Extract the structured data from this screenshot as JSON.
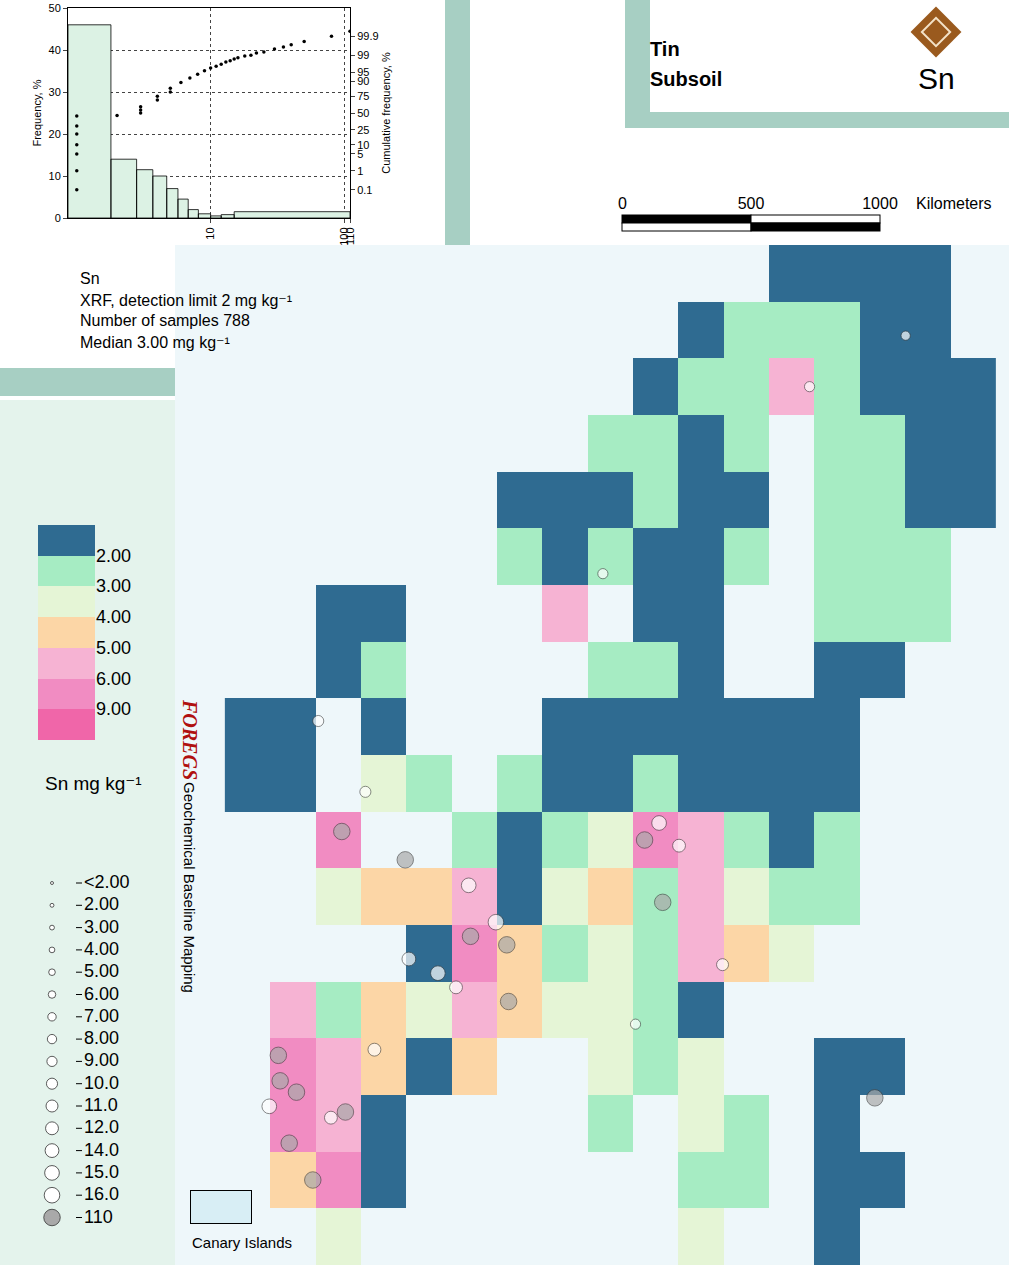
{
  "header": {
    "title": "Tin",
    "subtitle": "Subsoil",
    "symbol": "Sn"
  },
  "chart_data": [
    {
      "type": "histogram",
      "bins": [
        0.86,
        1.8,
        2.8,
        3.7,
        4.7,
        5.7,
        6.8,
        8.1,
        10,
        12,
        15,
        110
      ],
      "counts": [
        46,
        14,
        11.5,
        10,
        7,
        4.5,
        2,
        1,
        0.5,
        0.8,
        1.5
      ],
      "color": "#dcf2e4",
      "log": "x",
      "grid": true,
      "xlim": [
        0.86,
        110
      ],
      "xticks": [
        10,
        100,
        110
      ],
      "y_label": "Frequency, %",
      "ylim": [
        0,
        50
      ],
      "yticks": [
        0,
        10,
        20,
        30,
        40,
        50
      ],
      "cumulative": {
        "axis": "y2",
        "type": "scatter",
        "color": "#000000",
        "y_label": "Cumulative frequency, %",
        "x": [
          1,
          1,
          1,
          1,
          1,
          1,
          1,
          2,
          3,
          3,
          3,
          4,
          4,
          5,
          5,
          6,
          7,
          8,
          9,
          10,
          11,
          12,
          13,
          14,
          15,
          16,
          18,
          20,
          22,
          25,
          30,
          35,
          40,
          50,
          80,
          110
        ],
        "values": [
          0.1,
          1,
          5,
          10,
          20,
          30,
          45,
          46,
          50,
          55,
          60,
          70,
          75,
          80,
          84,
          89,
          92,
          94,
          95.5,
          96.5,
          97,
          97.5,
          98,
          98.2,
          98.5,
          98.7,
          98.9,
          99,
          99.2,
          99.3,
          99.5,
          99.6,
          99.7,
          99.8,
          99.9,
          99.95
        ],
        "y2lim": [
          0.0012,
          99.9988
        ],
        "y2ticks": [
          0.1,
          1,
          5,
          10,
          25,
          50,
          75,
          90,
          95,
          99,
          99.9
        ]
      },
      "annotations": [
        "Sn",
        "XRF, detection limit 2 mg kg⁻¹",
        "Number of samples 788",
        "Median 3.00 mg kg⁻¹"
      ]
    },
    {
      "type": "map",
      "tick_labels": false,
      "xlim": [
        -14,
        32
      ],
      "ylim": [
        35,
        71
      ],
      "field": {
        "x": [
          -10,
          -7.5,
          -5,
          -2.5,
          0,
          2.5,
          5,
          7.5,
          10,
          12.5,
          15,
          17.5,
          20,
          22.5,
          25,
          27.5,
          30
        ],
        "y": [
          36,
          38,
          40,
          42,
          44,
          46,
          48,
          50,
          52,
          54,
          56,
          58,
          60,
          62,
          64,
          66,
          68,
          70
        ],
        "z": [
          [
            null,
            null,
            3.5,
            null,
            null,
            null,
            null,
            null,
            null,
            null,
            3.5,
            null,
            null,
            1.5,
            null,
            null,
            null
          ],
          [
            null,
            4.5,
            7,
            1.5,
            null,
            null,
            null,
            null,
            null,
            null,
            2.5,
            2.5,
            null,
            1.5,
            1.5,
            null,
            null
          ],
          [
            null,
            7,
            5.5,
            1.5,
            null,
            null,
            null,
            null,
            2.5,
            null,
            3.5,
            2.5,
            null,
            1.5,
            null,
            null,
            null
          ],
          [
            null,
            7,
            5.5,
            4.5,
            1.5,
            4.5,
            null,
            null,
            3.5,
            2.5,
            3.5,
            null,
            null,
            1.5,
            1.5,
            null,
            null
          ],
          [
            null,
            5.5,
            2.5,
            4.5,
            3.5,
            5.5,
            4.5,
            3.5,
            3.5,
            2.5,
            1.5,
            null,
            null,
            null,
            null,
            null,
            null
          ],
          [
            null,
            null,
            null,
            null,
            1.5,
            7,
            4.5,
            2.5,
            3.5,
            2.5,
            5.5,
            4.5,
            3.5,
            null,
            null,
            null,
            null
          ],
          [
            null,
            null,
            3.5,
            4.5,
            4.5,
            5.5,
            1.5,
            3.5,
            4.5,
            2.5,
            5.5,
            3.5,
            2.5,
            2.5,
            null,
            null,
            null
          ],
          [
            null,
            null,
            7,
            null,
            null,
            2.5,
            1.5,
            2.5,
            3.5,
            7,
            5.5,
            2.5,
            1.5,
            2.5,
            null,
            null,
            null
          ],
          [
            1.5,
            1.5,
            null,
            3.5,
            2.5,
            null,
            2.5,
            1.5,
            1.5,
            2.5,
            1.5,
            1.5,
            1.5,
            1.5,
            null,
            null,
            null
          ],
          [
            1.5,
            1.5,
            null,
            1.5,
            null,
            null,
            null,
            1.5,
            1.5,
            1.5,
            1.5,
            1.5,
            1.5,
            1.5,
            null,
            null,
            null
          ],
          [
            null,
            null,
            1.5,
            2.5,
            null,
            null,
            null,
            null,
            2.5,
            2.5,
            1.5,
            null,
            null,
            1.5,
            1.5,
            null,
            null
          ],
          [
            null,
            null,
            1.5,
            1.5,
            null,
            null,
            null,
            5.5,
            null,
            1.5,
            1.5,
            null,
            null,
            2.5,
            2.5,
            2.5,
            null
          ],
          [
            null,
            null,
            null,
            null,
            null,
            null,
            2.5,
            1.5,
            2.5,
            1.5,
            1.5,
            2.5,
            null,
            2.5,
            2.5,
            2.5,
            null
          ],
          [
            null,
            null,
            null,
            null,
            null,
            null,
            1.5,
            1.5,
            1.5,
            2.5,
            1.5,
            1.5,
            null,
            2.5,
            2.5,
            1.5,
            1.5
          ],
          [
            null,
            null,
            null,
            null,
            null,
            null,
            null,
            null,
            2.5,
            2.5,
            1.5,
            2.5,
            null,
            2.5,
            2.5,
            1.5,
            1.5
          ],
          [
            null,
            null,
            null,
            null,
            null,
            null,
            null,
            null,
            null,
            1.5,
            2.5,
            2.5,
            5.5,
            2.5,
            1.5,
            1.5,
            1.5
          ],
          [
            null,
            null,
            null,
            null,
            null,
            null,
            null,
            null,
            null,
            null,
            1.5,
            2.5,
            2.5,
            2.5,
            1.5,
            1.5,
            null
          ],
          [
            null,
            null,
            null,
            null,
            null,
            null,
            null,
            null,
            null,
            null,
            null,
            null,
            1.5,
            1.5,
            1.5,
            1.5,
            null
          ]
        ],
        "zlim": [
          1,
          12
        ],
        "breaks": [
          {
            "value": 2,
            "label": "2.00"
          },
          {
            "value": 3,
            "label": "3.00"
          },
          {
            "value": 4,
            "label": "4.00"
          },
          {
            "value": 5,
            "label": "5.00"
          },
          {
            "value": 6,
            "label": "6.00"
          },
          {
            "value": 9,
            "label": "9.00"
          }
        ],
        "colors": [
          "#2f6b91",
          "#a6ecc3",
          "#e5f5d6",
          "#fcd6a6",
          "#f6b3d3",
          "#f18cc2",
          "#f066a9"
        ],
        "title": "Sn mg kg⁻¹"
      },
      "points": {
        "x": [
          -4.8,
          -1.3,
          2.3,
          4.3,
          4.4,
          11.9,
          12.9,
          -8.3,
          -8.2,
          -7.3,
          -4.6,
          -7.7,
          -6.4,
          24.6,
          2.2,
          3.7,
          0.5,
          1.5,
          -1.1,
          12.7,
          13.8,
          -8.8,
          -5.4,
          -6.1,
          -3.5,
          9.6,
          21.0,
          26.3,
          16.2,
          11.4,
          -3.0
        ],
        "y": [
          50.3,
          49.3,
          46.6,
          46.3,
          44.3,
          50.0,
          47.8,
          42.4,
          41.5,
          41.1,
          40.4,
          39.3,
          38.0,
          40.9,
          48.4,
          47.1,
          45.3,
          44.8,
          45.8,
          50.6,
          49.8,
          40.6,
          40.2,
          54.2,
          51.7,
          59.4,
          66.0,
          67.8,
          45.6,
          43.5,
          42.6
        ],
        "values": [
          110,
          110,
          110,
          110,
          110,
          110,
          110,
          110,
          110,
          110,
          110,
          110,
          110,
          110,
          15,
          16,
          15,
          12,
          14,
          15,
          12,
          15,
          12,
          10,
          10,
          9,
          9,
          8,
          11,
          9,
          12
        ],
        "colors": [
          "#a9a9a9",
          "#a9a9a9",
          "#a9a9a9",
          "#a9a9a9",
          "#a9a9a9",
          "#a9a9a9",
          "#a9a9a9",
          "#a9a9a9",
          "#a9a9a9",
          "#a9a9a9",
          "#a9a9a9",
          "#a9a9a9",
          "#a9a9a9",
          "#a9a9a9",
          "#ffffff",
          "#ffffff",
          "#ffffff",
          "#ffffff",
          "#ffffff",
          "#ffffff",
          "#ffffff",
          "#ffffff",
          "#ffffff",
          "#ffffff",
          "#ffffff",
          "#ffffff",
          "#ffffff",
          "#ffffff",
          "#ffffff",
          "#ffffff",
          "#ffffff"
        ]
      },
      "point_legend": {
        "items": [
          {
            "value": 2,
            "label": "<2.00"
          },
          {
            "value": 2,
            "label": "2.00"
          },
          {
            "value": 3,
            "label": "3.00"
          },
          {
            "value": 4,
            "label": "4.00"
          },
          {
            "value": 5,
            "label": "5.00"
          },
          {
            "value": 6,
            "label": "6.00"
          },
          {
            "value": 7,
            "label": "7.00"
          },
          {
            "value": 8,
            "label": "8.00"
          },
          {
            "value": 9,
            "label": "9.00"
          },
          {
            "value": 10,
            "label": "10.0"
          },
          {
            "value": 11,
            "label": "11.0"
          },
          {
            "value": 12,
            "label": "12.0"
          },
          {
            "value": 14,
            "label": "14.0"
          },
          {
            "value": 15,
            "label": "15.0"
          },
          {
            "value": 16,
            "label": "16.0"
          },
          110
        ],
        "colors": [
          "#ffffff",
          "#ffffff",
          "#ffffff",
          "#ffffff",
          "#ffffff",
          "#ffffff",
          "#ffffff",
          "#ffffff",
          "#ffffff",
          "#ffffff",
          "#ffffff",
          "#ffffff",
          "#ffffff",
          "#ffffff",
          "#ffffff",
          "#a9a9a9"
        ]
      },
      "labels": {
        "logo": "FOREGS",
        "project": "Geochemical Baseline Mapping",
        "inset": "Canary Islands"
      }
    }
  ],
  "scale_bar": {
    "ticks": [
      0,
      500,
      1000
    ],
    "unit": "Kilometers"
  }
}
